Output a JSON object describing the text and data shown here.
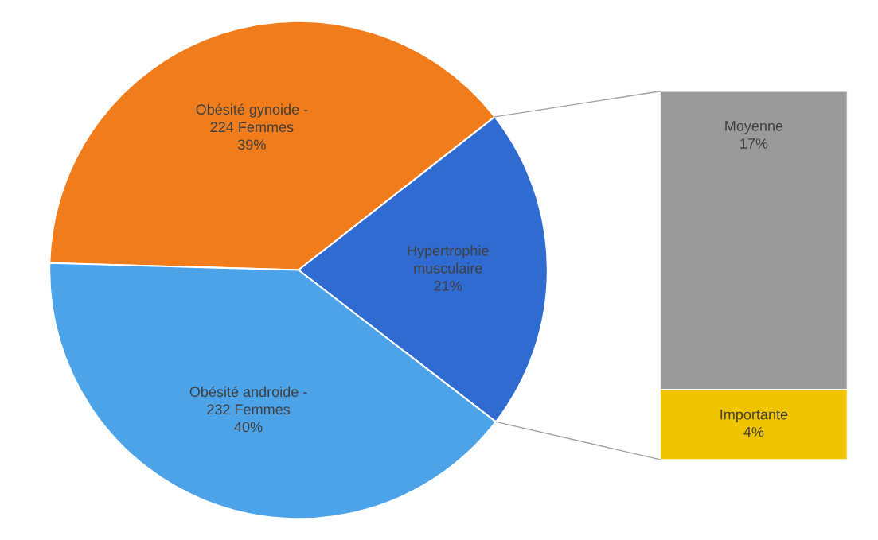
{
  "chart_data": [
    {
      "type": "pie",
      "categories": [
        "Obésité gynoide -\n224 Femmes",
        "Hypertrophie\nmusculaire",
        "Obésité androide -\n232 Femmes"
      ],
      "values": [
        39,
        21,
        40
      ],
      "value_labels": [
        "39%",
        "21%",
        "40%"
      ],
      "colors": [
        "#f07c1c",
        "#2f6bd0",
        "#4da3e8"
      ]
    },
    {
      "type": "bar",
      "stacked": true,
      "categories": [
        null
      ],
      "series": [
        {
          "name": "Importante",
          "color": "#f0c400",
          "values": [
            4
          ],
          "value_labels": [
            "4%"
          ]
        },
        {
          "name": "Moyenne",
          "color": "#9a9a9a",
          "values": [
            17
          ],
          "value_labels": [
            "17%"
          ]
        }
      ]
    }
  ]
}
